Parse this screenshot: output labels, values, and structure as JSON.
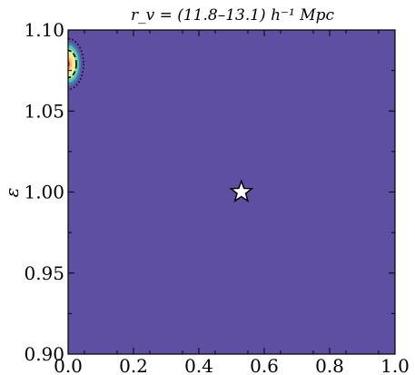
{
  "chart_data": {
    "type": "contour",
    "title": "r_v = (11.8–13.1) h⁻¹ Mpc",
    "ylabel": "ε",
    "xlabel": "",
    "xlim": [
      0.0,
      1.0
    ],
    "ylim": [
      0.9,
      1.1
    ],
    "xticks": [
      "0.0",
      "0.2",
      "0.4",
      "0.6",
      "0.8",
      "1.0"
    ],
    "yticks": [
      "0.90",
      "0.95",
      "1.00",
      "1.05",
      "1.10"
    ],
    "background_color": "#5e4fa2",
    "marker": {
      "shape": "star",
      "x": 0.53,
      "y": 1.0,
      "color": "#ffffff"
    },
    "contour_peak": {
      "x": 0.0,
      "y": 1.079
    },
    "contour_colors": [
      "#3288bd",
      "#66c2a5",
      "#abdda4",
      "#e6f598",
      "#fee08b",
      "#fdae61",
      "#d53e4f"
    ]
  }
}
